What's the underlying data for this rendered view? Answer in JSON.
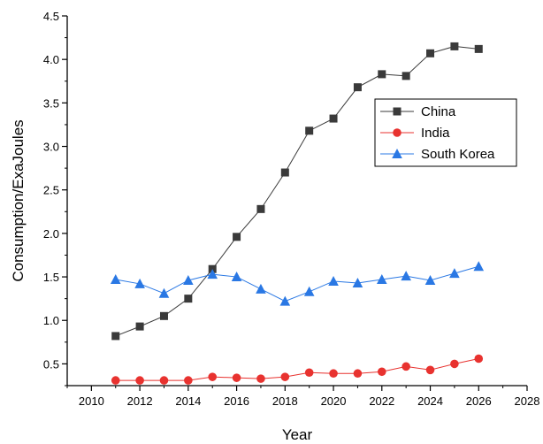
{
  "chart_data": {
    "type": "line",
    "title": "",
    "xlabel": "Year",
    "ylabel": "Consumption/ExaJoules",
    "xlim": [
      2009,
      2028
    ],
    "ylim": [
      0.25,
      4.5
    ],
    "x_ticks": [
      2010,
      2012,
      2014,
      2016,
      2018,
      2020,
      2022,
      2024,
      2026,
      2028
    ],
    "y_ticks": [
      0.5,
      1.0,
      1.5,
      2.0,
      2.5,
      3.0,
      3.5,
      4.0,
      4.5
    ],
    "x_tick_labels": [
      "2010",
      "2012",
      "2014",
      "2016",
      "2018",
      "2020",
      "2022",
      "2024",
      "2026",
      "2028"
    ],
    "y_tick_labels": [
      "0.5",
      "1.0",
      "1.5",
      "2.0",
      "2.5",
      "3.0",
      "3.5",
      "4.0",
      "4.5"
    ],
    "grid": false,
    "legend_position": "top-right",
    "x": [
      2011,
      2012,
      2013,
      2014,
      2015,
      2016,
      2017,
      2018,
      2019,
      2020,
      2021,
      2022,
      2023,
      2024,
      2025,
      2026
    ],
    "series": [
      {
        "name": "China",
        "color": "#3a3a3a",
        "marker": "square",
        "values": [
          0.82,
          0.93,
          1.05,
          1.25,
          1.59,
          1.96,
          2.28,
          2.7,
          3.18,
          3.32,
          3.68,
          3.83,
          3.81,
          4.07,
          4.15,
          4.12
        ]
      },
      {
        "name": "India",
        "color": "#e8322f",
        "marker": "circle",
        "values": [
          0.31,
          0.31,
          0.31,
          0.31,
          0.35,
          0.34,
          0.33,
          0.35,
          0.4,
          0.39,
          0.39,
          0.41,
          0.47,
          0.43,
          0.5,
          0.56
        ]
      },
      {
        "name": "South Korea",
        "color": "#2a78e4",
        "marker": "triangle",
        "values": [
          1.47,
          1.42,
          1.31,
          1.46,
          1.53,
          1.5,
          1.36,
          1.22,
          1.33,
          1.45,
          1.43,
          1.47,
          1.51,
          1.46,
          1.54,
          1.62
        ]
      }
    ]
  }
}
